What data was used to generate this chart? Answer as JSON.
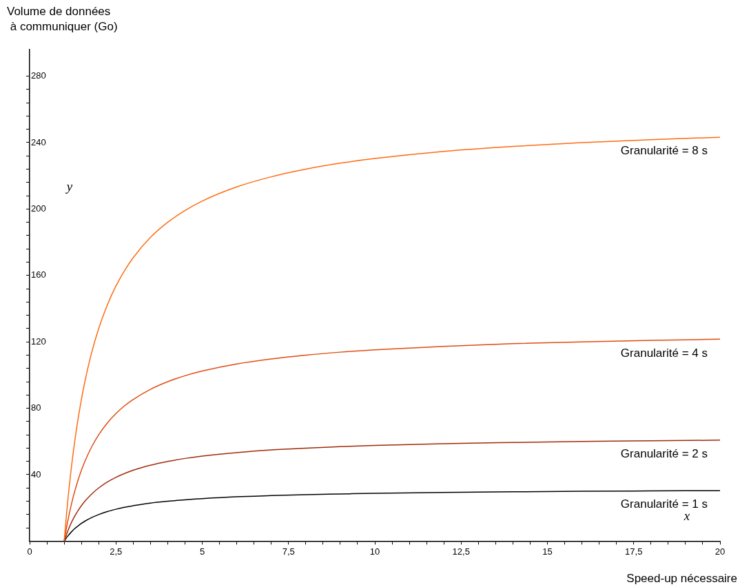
{
  "chart_data": {
    "type": "line",
    "xlabel": "Speed-up nécessaire",
    "ylabel": "Volume de données\n à communiquer (Go)",
    "x": [
      1,
      1.1,
      1.2,
      1.3,
      1.4,
      1.5,
      1.6,
      1.8,
      2,
      2.25,
      2.5,
      2.75,
      3,
      3.5,
      4,
      4.5,
      5,
      6,
      7,
      8,
      9,
      10,
      12,
      14,
      16,
      18,
      20
    ],
    "series": [
      {
        "name": "Granularité = 8 s",
        "color": "#ff6a10",
        "values": [
          0,
          23.3,
          42.7,
          59.1,
          73.1,
          85.3,
          96,
          113.8,
          128,
          142.2,
          153.6,
          162.9,
          170.7,
          182.9,
          192,
          199.1,
          204.8,
          213.3,
          219.4,
          224,
          227.6,
          230.4,
          234.7,
          237.7,
          240,
          241.8,
          243.2
        ]
      },
      {
        "name": "Granularité = 4 s",
        "color": "#e04a10",
        "values": [
          0,
          11.6,
          21.3,
          29.5,
          36.6,
          42.7,
          48,
          56.9,
          64,
          71.1,
          76.8,
          81.5,
          85.3,
          91.4,
          96,
          99.6,
          102.4,
          106.7,
          109.7,
          112,
          113.8,
          115.2,
          117.3,
          118.9,
          120,
          120.9,
          121.6
        ]
      },
      {
        "name": "Granularité = 2 s",
        "color": "#a02a08",
        "values": [
          0,
          5.8,
          10.7,
          14.8,
          18.3,
          21.3,
          24,
          28.4,
          32,
          35.6,
          38.4,
          40.7,
          42.7,
          45.7,
          48,
          49.8,
          51.2,
          53.3,
          54.9,
          56,
          56.9,
          57.6,
          58.7,
          59.4,
          60,
          60.4,
          60.8
        ]
      },
      {
        "name": "Granularité = 1 s",
        "color": "#000000",
        "values": [
          0,
          2.9,
          5.3,
          7.4,
          9.1,
          10.7,
          12,
          14.2,
          16,
          17.8,
          19.2,
          20.4,
          21.3,
          22.9,
          24,
          24.9,
          25.6,
          26.7,
          27.4,
          28,
          28.4,
          28.8,
          29.3,
          29.7,
          30,
          30.2,
          30.4
        ]
      }
    ],
    "xlim": [
      0,
      20
    ],
    "ylim": [
      0,
      296
    ],
    "xticks": [
      0,
      {
        "value": 0.5,
        "label": null
      },
      {
        "value": 1,
        "label": null
      },
      {
        "value": 1.5,
        "label": null
      },
      {
        "value": 2,
        "label": null
      },
      {
        "value": 2.5,
        "label": "2,5"
      },
      {
        "value": 3,
        "label": null
      },
      {
        "value": 3.5,
        "label": null
      },
      {
        "value": 4,
        "label": null
      },
      {
        "value": 4.5,
        "label": null
      },
      5,
      {
        "value": 5.5,
        "label": null
      },
      {
        "value": 6,
        "label": null
      },
      {
        "value": 6.5,
        "label": null
      },
      {
        "value": 7,
        "label": null
      },
      {
        "value": 7.5,
        "label": "7,5"
      },
      {
        "value": 8,
        "label": null
      },
      {
        "value": 8.5,
        "label": null
      },
      {
        "value": 9,
        "label": null
      },
      {
        "value": 9.5,
        "label": null
      },
      10,
      {
        "value": 10.5,
        "label": null
      },
      {
        "value": 11,
        "label": null
      },
      {
        "value": 11.5,
        "label": null
      },
      {
        "value": 12,
        "label": null
      },
      {
        "value": 12.5,
        "label": "12,5"
      },
      {
        "value": 13,
        "label": null
      },
      {
        "value": 13.5,
        "label": null
      },
      {
        "value": 14,
        "label": null
      },
      {
        "value": 14.5,
        "label": null
      },
      15,
      {
        "value": 15.5,
        "label": null
      },
      {
        "value": 16,
        "label": null
      },
      {
        "value": 16.5,
        "label": null
      },
      {
        "value": 17,
        "label": null
      },
      {
        "value": 17.5,
        "label": "17,5"
      },
      {
        "value": 18,
        "label": null
      },
      {
        "value": 18.5,
        "label": null
      },
      {
        "value": 19,
        "label": null
      },
      {
        "value": 19.5,
        "label": null
      },
      20
    ],
    "yticks": [
      {
        "value": 8,
        "label": null
      },
      {
        "value": 16,
        "label": null
      },
      {
        "value": 24,
        "label": null
      },
      {
        "value": 32,
        "label": null
      },
      40,
      {
        "value": 48,
        "label": null
      },
      {
        "value": 56,
        "label": null
      },
      {
        "value": 64,
        "label": null
      },
      {
        "value": 72,
        "label": null
      },
      80,
      {
        "value": 88,
        "label": null
      },
      {
        "value": 96,
        "label": null
      },
      {
        "value": 104,
        "label": null
      },
      {
        "value": 112,
        "label": null
      },
      120,
      {
        "value": 128,
        "label": null
      },
      {
        "value": 136,
        "label": null
      },
      {
        "value": 144,
        "label": null
      },
      {
        "value": 152,
        "label": null
      },
      160,
      {
        "value": 168,
        "label": null
      },
      {
        "value": 176,
        "label": null
      },
      {
        "value": 184,
        "label": null
      },
      {
        "value": 192,
        "label": null
      },
      200,
      {
        "value": 208,
        "label": null
      },
      {
        "value": 216,
        "label": null
      },
      {
        "value": 224,
        "label": null
      },
      {
        "value": 232,
        "label": null
      },
      240,
      {
        "value": 248,
        "label": null
      },
      {
        "value": 256,
        "label": null
      },
      {
        "value": 264,
        "label": null
      },
      {
        "value": 272,
        "label": null
      },
      280
    ],
    "annotations": [
      "y",
      "x"
    ],
    "grid": false,
    "legend": false,
    "marker": "none",
    "line_style": "solid"
  }
}
